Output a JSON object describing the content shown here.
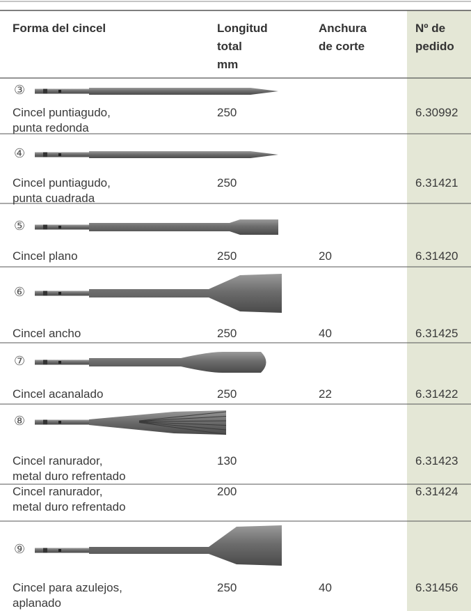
{
  "header": {
    "columns": [
      "Forma del cincel",
      "Longitud\ntotal\nmm",
      "Anchura\nde corte",
      "Nº de\npedido"
    ]
  },
  "rows": [
    {
      "number": "③",
      "name": "Cincel puntiagudo,\npunta redonda",
      "length": "250",
      "width": null,
      "order": "6.30992"
    },
    {
      "number": "④",
      "name": "Cincel puntiagudo,\npunta cuadrada",
      "length": "250",
      "width": null,
      "order": "6.31421"
    },
    {
      "number": "⑤",
      "name": "Cincel plano",
      "length": "250",
      "width": "20",
      "order": "6.31420"
    },
    {
      "number": "⑥",
      "name": "Cincel ancho",
      "length": "250",
      "width": "40",
      "order": "6.31425"
    },
    {
      "number": "⑦",
      "name": "Cincel acanalado",
      "length": "250",
      "width": "22",
      "order": "6.31422"
    },
    {
      "number": "⑧",
      "name": "Cincel ranurador,\nmetal duro refrentado",
      "length": "130",
      "width": null,
      "order": "6.31423"
    },
    {
      "number": null,
      "name": "Cincel ranurador,\nmetal duro refrentado",
      "length": "200",
      "width": null,
      "order": "6.31424"
    },
    {
      "number": "⑨",
      "name": "Cincel para azulejos,\naplanado",
      "length": "250",
      "width": "40",
      "order": "6.31456"
    }
  ]
}
